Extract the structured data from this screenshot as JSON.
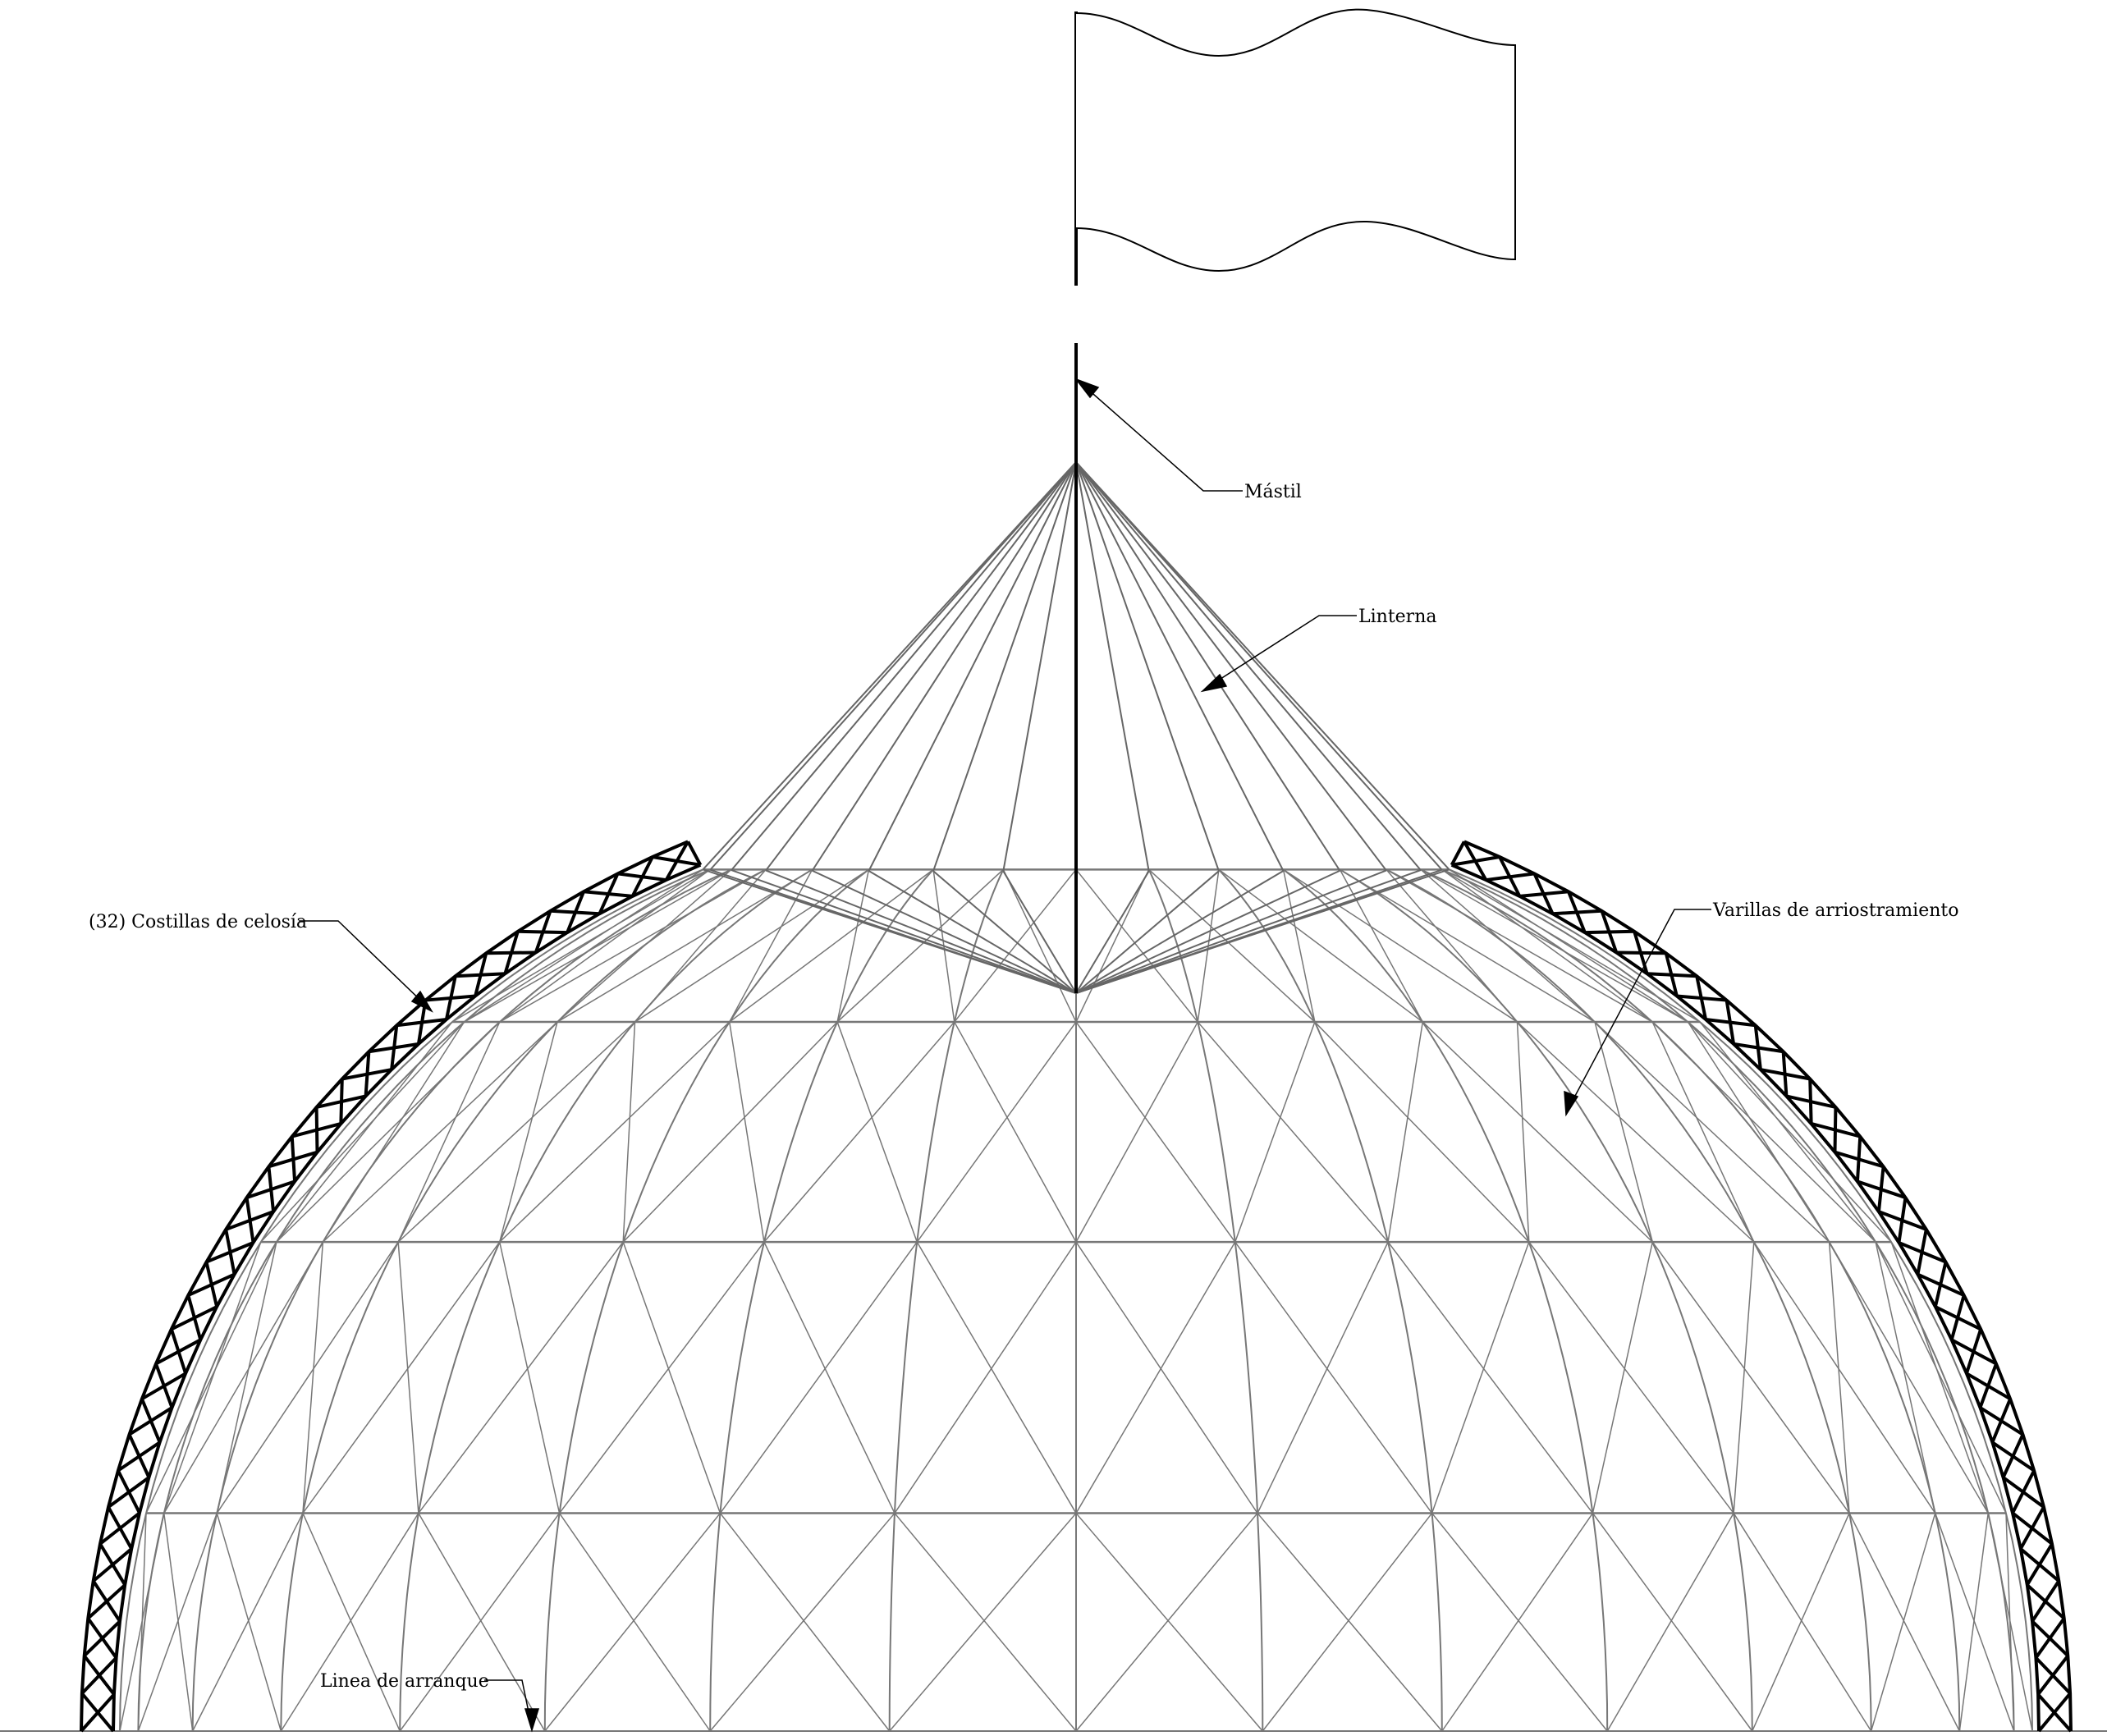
{
  "diagram": {
    "labels": {
      "mast": "Mástil",
      "lantern": "Linterna",
      "ribs": "(32) Costillas de celosía",
      "bracing": "Varillas de arriostramiento",
      "springing": "Linea de arranque"
    },
    "rib_count": 32,
    "colors": {
      "structure": "#000000",
      "mesh": "#777777",
      "background": "#ffffff"
    }
  }
}
